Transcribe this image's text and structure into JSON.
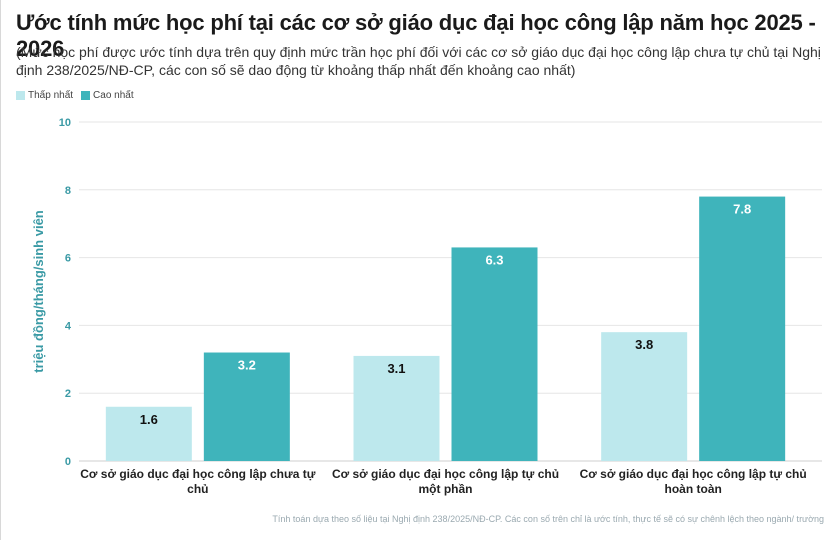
{
  "header": {
    "title": "Ước tính mức học phí tại các cơ sở giáo dục đại học công lập năm học 2025 - 2026",
    "subtitle": "(Mức học phí được ước tính dựa trên quy định mức trần học phí đối với các cơ sở giáo dục đại học công lập chưa tự chủ tại Nghị định 238/2025/NĐ-CP, các con số sẽ dao động từ khoảng thấp nhất đến khoảng cao nhất)"
  },
  "footnote": "Tính toán dựa theo số liệu tại Nghị định 238/2025/NĐ-CP. Các con số trên chỉ là ước tính, thực tế sẽ có sự chênh lệch theo ngành/ trường",
  "colors": {
    "low": "#bde8ed",
    "high": "#3fb4bb",
    "axis_text": "#3a9aa5"
  },
  "chart_data": {
    "type": "bar",
    "title": "Ước tính mức học phí tại các cơ sở giáo dục đại học công lập năm học 2025 - 2026",
    "xlabel": "",
    "ylabel": "triệu đồng/tháng/sinh viên",
    "ylim": [
      0,
      10
    ],
    "yticks": [
      0,
      2,
      4,
      6,
      8,
      10
    ],
    "grid": true,
    "legend_position": "top-left",
    "categories": [
      [
        "Cơ sở giáo dục đại học công lập chưa tự",
        "chủ"
      ],
      [
        "Cơ sở giáo dục đại học công lập tự chủ",
        "một phần"
      ],
      [
        "Cơ sở giáo dục đại học công lập tự chủ",
        "hoàn toàn"
      ]
    ],
    "series": [
      {
        "name": "Thấp nhất",
        "values": [
          1.6,
          3.1,
          3.8
        ],
        "labels": [
          "1.6",
          "3.1",
          "3.8"
        ]
      },
      {
        "name": "Cao nhất",
        "values": [
          3.2,
          6.3,
          7.8
        ],
        "labels": [
          "3.2",
          "6.3",
          "7.8"
        ]
      }
    ]
  }
}
